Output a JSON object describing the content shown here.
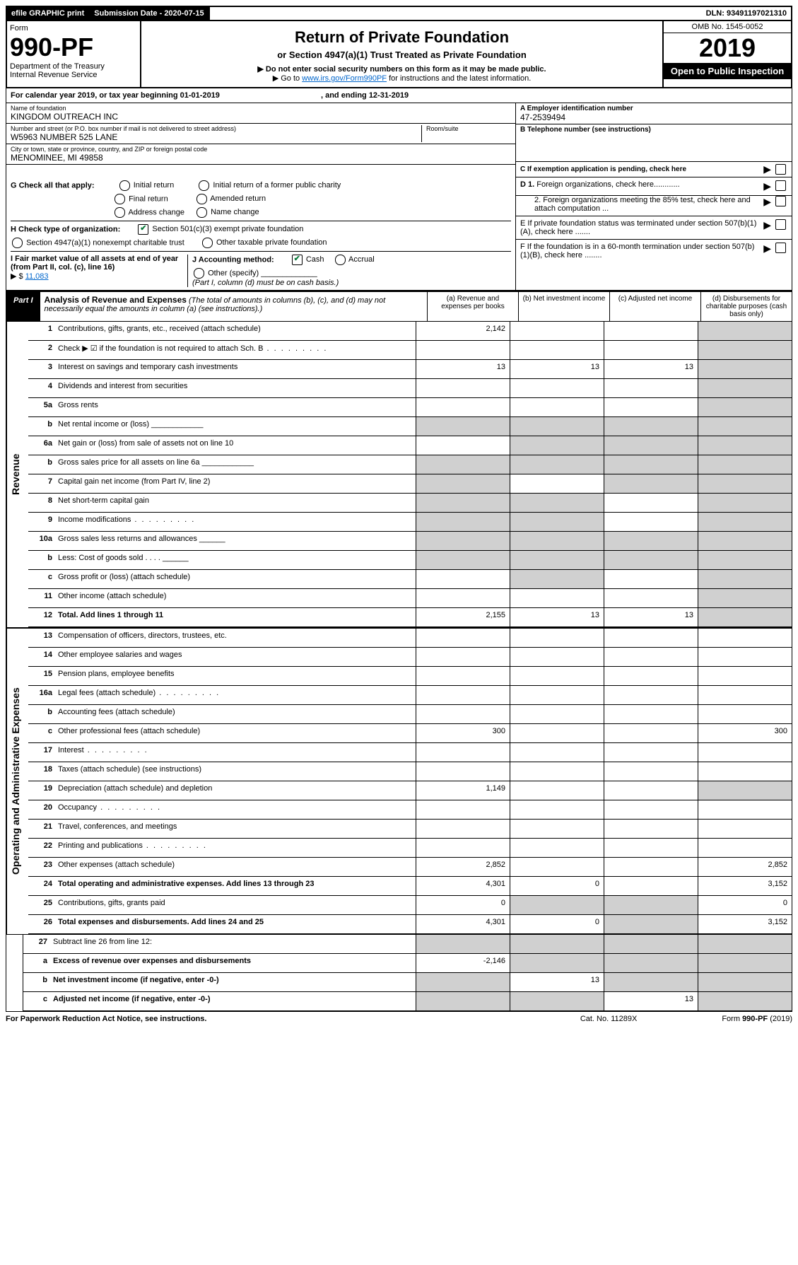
{
  "topbar": {
    "efile": "efile GRAPHIC print",
    "submission_label": "Submission Date - 2020-07-15",
    "dln": "DLN: 93491197021310"
  },
  "header": {
    "form_word": "Form",
    "form_num": "990-PF",
    "dept": "Department of the Treasury",
    "irs": "Internal Revenue Service",
    "title": "Return of Private Foundation",
    "subtitle": "or Section 4947(a)(1) Trust Treated as Private Foundation",
    "warn": "▶ Do not enter social security numbers on this form as it may be made public.",
    "goto_pre": "▶ Go to ",
    "goto_link": "www.irs.gov/Form990PF",
    "goto_post": " for instructions and the latest information.",
    "omb": "OMB No. 1545-0052",
    "year": "2019",
    "open": "Open to Public Inspection"
  },
  "cal": {
    "text_a": "For calendar year 2019, or tax year beginning 01-01-2019",
    "text_b": ", and ending 12-31-2019"
  },
  "foundation": {
    "name_label": "Name of foundation",
    "name": "KINGDOM OUTREACH INC",
    "addr_label": "Number and street (or P.O. box number if mail is not delivered to street address)",
    "addr": "W5963 NUMBER 525 LANE",
    "room_label": "Room/suite",
    "city_label": "City or town, state or province, country, and ZIP or foreign postal code",
    "city": "MENOMINEE, MI  49858",
    "ein_label": "A Employer identification number",
    "ein": "47-2539494",
    "tel_label": "B Telephone number (see instructions)",
    "c_label": "C If exemption application is pending, check here"
  },
  "sections": {
    "g_label": "G Check all that apply:",
    "g_opts": {
      "initial": "Initial return",
      "initial_former": "Initial return of a former public charity",
      "final": "Final return",
      "amended": "Amended return",
      "addr_change": "Address change",
      "name_change": "Name change"
    },
    "h_label": "H Check type of organization:",
    "h_opts": {
      "501c3": "Section 501(c)(3) exempt private foundation",
      "4947": "Section 4947(a)(1) nonexempt charitable trust",
      "other_tax": "Other taxable private foundation"
    },
    "i_label": "I Fair market value of all assets at end of year (from Part II, col. (c), line 16)",
    "i_prefix": "▶ $",
    "i_value": "11,083",
    "j_label": "J Accounting method:",
    "j_cash": "Cash",
    "j_accrual": "Accrual",
    "j_other": "Other (specify)",
    "j_note": "(Part I, column (d) must be on cash basis.)",
    "d1": "D 1. Foreign organizations, check here............",
    "d2": "2. Foreign organizations meeting the 85% test, check here and attach computation ...",
    "e": "E  If private foundation status was terminated under section 507(b)(1)(A), check here .......",
    "f": "F  If the foundation is in a 60-month termination under section 507(b)(1)(B), check here ........"
  },
  "part1": {
    "label": "Part I",
    "title": "Analysis of Revenue and Expenses",
    "title_note": "(The total of amounts in columns (b), (c), and (d) may not necessarily equal the amounts in column (a) (see instructions).)",
    "cols": {
      "a": "(a)   Revenue and expenses per books",
      "b": "(b)   Net investment income",
      "c": "(c)   Adjusted net income",
      "d": "(d)   Disbursements for charitable purposes (cash basis only)"
    }
  },
  "revenue_label": "Revenue",
  "expense_label": "Operating and Administrative Expenses",
  "rows": [
    {
      "n": "1",
      "d": "Contributions, gifts, grants, etc., received (attach schedule)",
      "a": "2,142",
      "shade_d": true
    },
    {
      "n": "2",
      "d": "Check ▶ ☑ if the foundation is not required to attach Sch. B",
      "dots": true,
      "shade_d": true
    },
    {
      "n": "3",
      "d": "Interest on savings and temporary cash investments",
      "a": "13",
      "b": "13",
      "c": "13",
      "shade_d": true
    },
    {
      "n": "4",
      "d": "Dividends and interest from securities",
      "shade_d": true
    },
    {
      "n": "5a",
      "d": "Gross rents",
      "shade_d": true
    },
    {
      "n": "b",
      "d": "Net rental income or (loss) ____________",
      "shade_a": true,
      "shade_b": true,
      "shade_c": true,
      "shade_d": true
    },
    {
      "n": "6a",
      "d": "Net gain or (loss) from sale of assets not on line 10",
      "shade_b": true,
      "shade_c": true,
      "shade_d": true
    },
    {
      "n": "b",
      "d": "Gross sales price for all assets on line 6a ____________",
      "shade_a": true,
      "shade_b": true,
      "shade_c": true,
      "shade_d": true
    },
    {
      "n": "7",
      "d": "Capital gain net income (from Part IV, line 2)",
      "shade_a": true,
      "shade_c": true,
      "shade_d": true
    },
    {
      "n": "8",
      "d": "Net short-term capital gain",
      "shade_a": true,
      "shade_b": true,
      "shade_d": true
    },
    {
      "n": "9",
      "d": "Income modifications",
      "dots": true,
      "shade_a": true,
      "shade_b": true,
      "shade_d": true
    },
    {
      "n": "10a",
      "d": "Gross sales less returns and allowances   ______",
      "shade_a": true,
      "shade_b": true,
      "shade_c": true,
      "shade_d": true
    },
    {
      "n": "b",
      "d": "Less: Cost of goods sold    . . . .   ______",
      "shade_a": true,
      "shade_b": true,
      "shade_c": true,
      "shade_d": true
    },
    {
      "n": "c",
      "d": "Gross profit or (loss) (attach schedule)",
      "shade_b": true,
      "shade_d": true
    },
    {
      "n": "11",
      "d": "Other income (attach schedule)",
      "shade_d": true
    },
    {
      "n": "12",
      "d": "Total. Add lines 1 through 11",
      "bold": true,
      "a": "2,155",
      "b": "13",
      "c": "13",
      "shade_d": true
    }
  ],
  "expense_rows": [
    {
      "n": "13",
      "d": "Compensation of officers, directors, trustees, etc."
    },
    {
      "n": "14",
      "d": "Other employee salaries and wages"
    },
    {
      "n": "15",
      "d": "Pension plans, employee benefits"
    },
    {
      "n": "16a",
      "d": "Legal fees (attach schedule)",
      "dots": true
    },
    {
      "n": "b",
      "d": "Accounting fees (attach schedule)"
    },
    {
      "n": "c",
      "d": "Other professional fees (attach schedule)",
      "a": "300",
      "d_": "300"
    },
    {
      "n": "17",
      "d": "Interest",
      "dots": true
    },
    {
      "n": "18",
      "d": "Taxes (attach schedule) (see instructions)"
    },
    {
      "n": "19",
      "d": "Depreciation (attach schedule) and depletion",
      "a": "1,149",
      "shade_d": true
    },
    {
      "n": "20",
      "d": "Occupancy",
      "dots": true
    },
    {
      "n": "21",
      "d": "Travel, conferences, and meetings"
    },
    {
      "n": "22",
      "d": "Printing and publications",
      "dots": true
    },
    {
      "n": "23",
      "d": "Other expenses (attach schedule)",
      "a": "2,852",
      "d_": "2,852"
    },
    {
      "n": "24",
      "d": "Total operating and administrative expenses. Add lines 13 through 23",
      "bold": true,
      "a": "4,301",
      "b": "0",
      "d_": "3,152"
    },
    {
      "n": "25",
      "d": "Contributions, gifts, grants paid",
      "a": "0",
      "shade_b": true,
      "shade_c": true,
      "d_": "0"
    },
    {
      "n": "26",
      "d": "Total expenses and disbursements. Add lines 24 and 25",
      "bold": true,
      "a": "4,301",
      "b": "0",
      "shade_c": true,
      "d_": "3,152"
    }
  ],
  "bottom_rows": [
    {
      "n": "27",
      "d": "Subtract line 26 from line 12:",
      "shade_a": true,
      "shade_b": true,
      "shade_c": true,
      "shade_d": true
    },
    {
      "n": "a",
      "d": "Excess of revenue over expenses and disbursements",
      "bold": true,
      "a": "-2,146",
      "shade_b": true,
      "shade_c": true,
      "shade_d": true
    },
    {
      "n": "b",
      "d": "Net investment income (if negative, enter -0-)",
      "bold": true,
      "shade_a": true,
      "b": "13",
      "shade_c": true,
      "shade_d": true
    },
    {
      "n": "c",
      "d": "Adjusted net income (if negative, enter -0-)",
      "bold": true,
      "shade_a": true,
      "shade_b": true,
      "c": "13",
      "shade_d": true
    }
  ],
  "footer": {
    "left": "For Paperwork Reduction Act Notice, see instructions.",
    "mid": "Cat. No. 11289X",
    "right": "Form 990-PF (2019)"
  }
}
